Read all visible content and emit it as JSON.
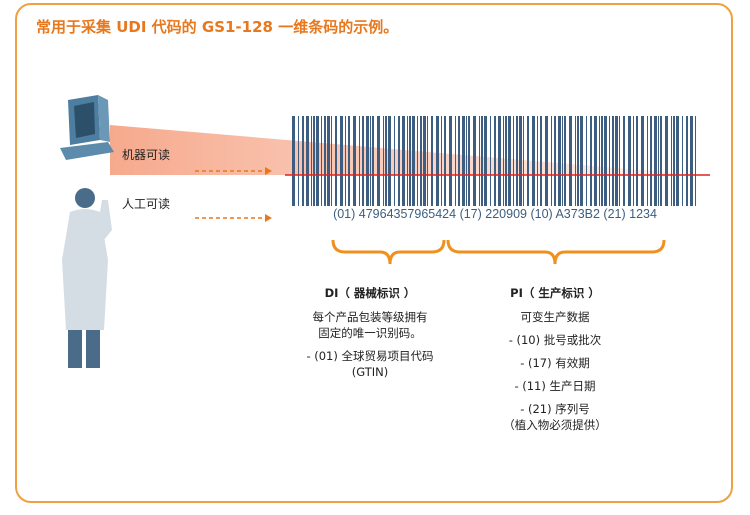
{
  "title": "常用于采集 UDI 代码的 GS1-128 一维条码的示例。",
  "labels": {
    "machine": "机器可读",
    "human": "人工可读"
  },
  "barcode_text": "(01) 47964357965424 (17) 220909 (10) A373B2 (21) 1234",
  "di": {
    "heading": "DI（ 器械标识 ）",
    "desc1": "每个产品包装等级拥有",
    "desc2": "固定的唯一识别码。",
    "item1": "- (01) 全球贸易项目代码",
    "item2": "(GTIN)"
  },
  "pi": {
    "heading": "PI（ 生产标识 ）",
    "desc": "可变生产数据",
    "items": [
      "- (10) 批号或批次",
      "- (17) 有效期",
      "- (11) 生产日期",
      "- (21) 序列号"
    ],
    "note": "（植入物必须提供）"
  },
  "colors": {
    "accent": "#e8781e",
    "bar": "#3d5e80",
    "scanline": "#e02020"
  },
  "icons": [
    "computer-monitor-icon",
    "person-doctor-icon"
  ]
}
